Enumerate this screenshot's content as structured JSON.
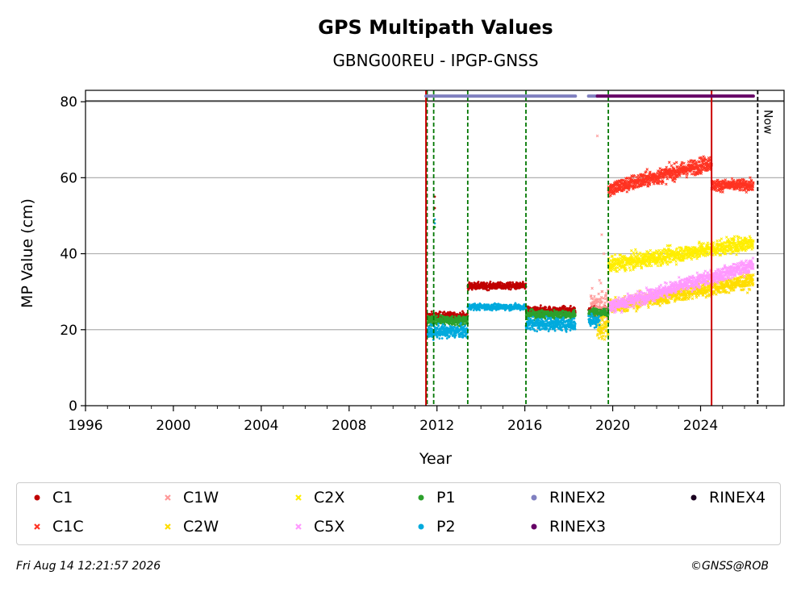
{
  "chart_data": {
    "type": "scatter",
    "title": "GPS Multipath Values",
    "subtitle": "GBNG00REU - IPGP-GNSS",
    "xlabel": "Year",
    "ylabel": "MP Value (cm)",
    "xlim": [
      1996,
      2027.8
    ],
    "ylim": [
      0,
      83
    ],
    "x_ticks": [
      1996,
      2000,
      2004,
      2008,
      2012,
      2016,
      2020,
      2024
    ],
    "y_ticks": [
      0,
      20,
      40,
      60,
      80
    ],
    "grid": "horizontal",
    "legend_placement": "below",
    "now_label": "Now",
    "now_x": 2026.6,
    "rinex_band_y": 81.5,
    "vlines_green": [
      2011.55,
      2011.85,
      2013.4,
      2016.05,
      2019.8
    ],
    "vlines_red": [
      2011.5,
      2024.5
    ],
    "rinex_segments": [
      {
        "series": "RINEX2",
        "start": 2011.5,
        "end": 2018.3
      },
      {
        "series": "RINEX2",
        "start": 2018.9,
        "end": 2019.3
      },
      {
        "series": "RINEX3",
        "start": 2019.3,
        "end": 2026.4
      }
    ],
    "series": [
      {
        "name": "C1",
        "color": "#c00000",
        "marker": "dot",
        "segments": [
          {
            "start": 2011.55,
            "end": 2013.4,
            "value": 23.5,
            "spread": 1.0
          },
          {
            "start": 2013.4,
            "end": 2016.05,
            "value": 31.5,
            "spread": 0.8
          },
          {
            "start": 2016.05,
            "end": 2018.3,
            "value": 25.0,
            "spread": 1.0
          },
          {
            "start": 2018.9,
            "end": 2019.8,
            "value": 25.0,
            "spread": 1.0
          }
        ],
        "points": [
          {
            "x": 2011.9,
            "y": 55
          },
          {
            "x": 2011.9,
            "y": 52
          }
        ]
      },
      {
        "name": "C1C",
        "color": "#ff3322",
        "marker": "x",
        "segments": [
          {
            "start": 2019.8,
            "end": 2024.5,
            "value_start": 57,
            "value_end": 64,
            "spread": 1.8
          },
          {
            "start": 2024.5,
            "end": 2026.4,
            "value": 58,
            "spread": 1.3
          }
        ]
      },
      {
        "name": "C1W",
        "color": "#ff9999",
        "marker": "x",
        "segments": [
          {
            "start": 2019.0,
            "end": 2019.8,
            "value": 26,
            "spread": 4
          }
        ],
        "points": [
          {
            "x": 2019.3,
            "y": 71
          },
          {
            "x": 2019.5,
            "y": 45
          },
          {
            "x": 2019.4,
            "y": 33
          },
          {
            "x": 2019.6,
            "y": 40
          }
        ]
      },
      {
        "name": "C2W",
        "color": "#ffdd00",
        "marker": "x",
        "segments": [
          {
            "start": 2019.3,
            "end": 2019.8,
            "value": 21,
            "spread": 3
          },
          {
            "start": 2019.8,
            "end": 2026.4,
            "value_start": 26,
            "value_end": 33,
            "spread": 1.8
          }
        ]
      },
      {
        "name": "C2X",
        "color": "#ffee00",
        "marker": "x",
        "segments": [
          {
            "start": 2019.8,
            "end": 2026.4,
            "value_start": 37,
            "value_end": 43,
            "spread": 1.8
          }
        ]
      },
      {
        "name": "C5X",
        "color": "#ff99ff",
        "marker": "x",
        "segments": [
          {
            "start": 2019.8,
            "end": 2026.4,
            "value_start": 26,
            "value_end": 37,
            "spread": 1.6
          }
        ]
      },
      {
        "name": "P1",
        "color": "#2ca02c",
        "marker": "dot",
        "segments": [
          {
            "start": 2011.55,
            "end": 2013.4,
            "value": 22.5,
            "spread": 1.2
          },
          {
            "start": 2016.05,
            "end": 2018.3,
            "value": 24.0,
            "spread": 1.0
          },
          {
            "start": 2018.9,
            "end": 2019.8,
            "value": 24.5,
            "spread": 1.0
          }
        ],
        "points": [
          {
            "x": 2011.9,
            "y": 47
          }
        ]
      },
      {
        "name": "P2",
        "color": "#00aadd",
        "marker": "dot",
        "segments": [
          {
            "start": 2011.55,
            "end": 2013.4,
            "value": 19.5,
            "spread": 1.5
          },
          {
            "start": 2013.4,
            "end": 2016.05,
            "value": 26.0,
            "spread": 0.7
          },
          {
            "start": 2016.05,
            "end": 2018.3,
            "value": 21.5,
            "spread": 1.5
          },
          {
            "start": 2018.9,
            "end": 2019.4,
            "value": 22.5,
            "spread": 1.5
          }
        ],
        "points": [
          {
            "x": 2011.9,
            "y": 49
          },
          {
            "x": 2011.9,
            "y": 48
          }
        ]
      },
      {
        "name": "RINEX2",
        "color": "#8080c0",
        "marker": "dot"
      },
      {
        "name": "RINEX3",
        "color": "#660066",
        "marker": "dot"
      },
      {
        "name": "RINEX4",
        "color": "#1a0020",
        "marker": "dot"
      }
    ]
  },
  "footer": {
    "timestamp": "Fri Aug 14 12:21:57 2026",
    "credit": "©GNSS@ROB"
  }
}
